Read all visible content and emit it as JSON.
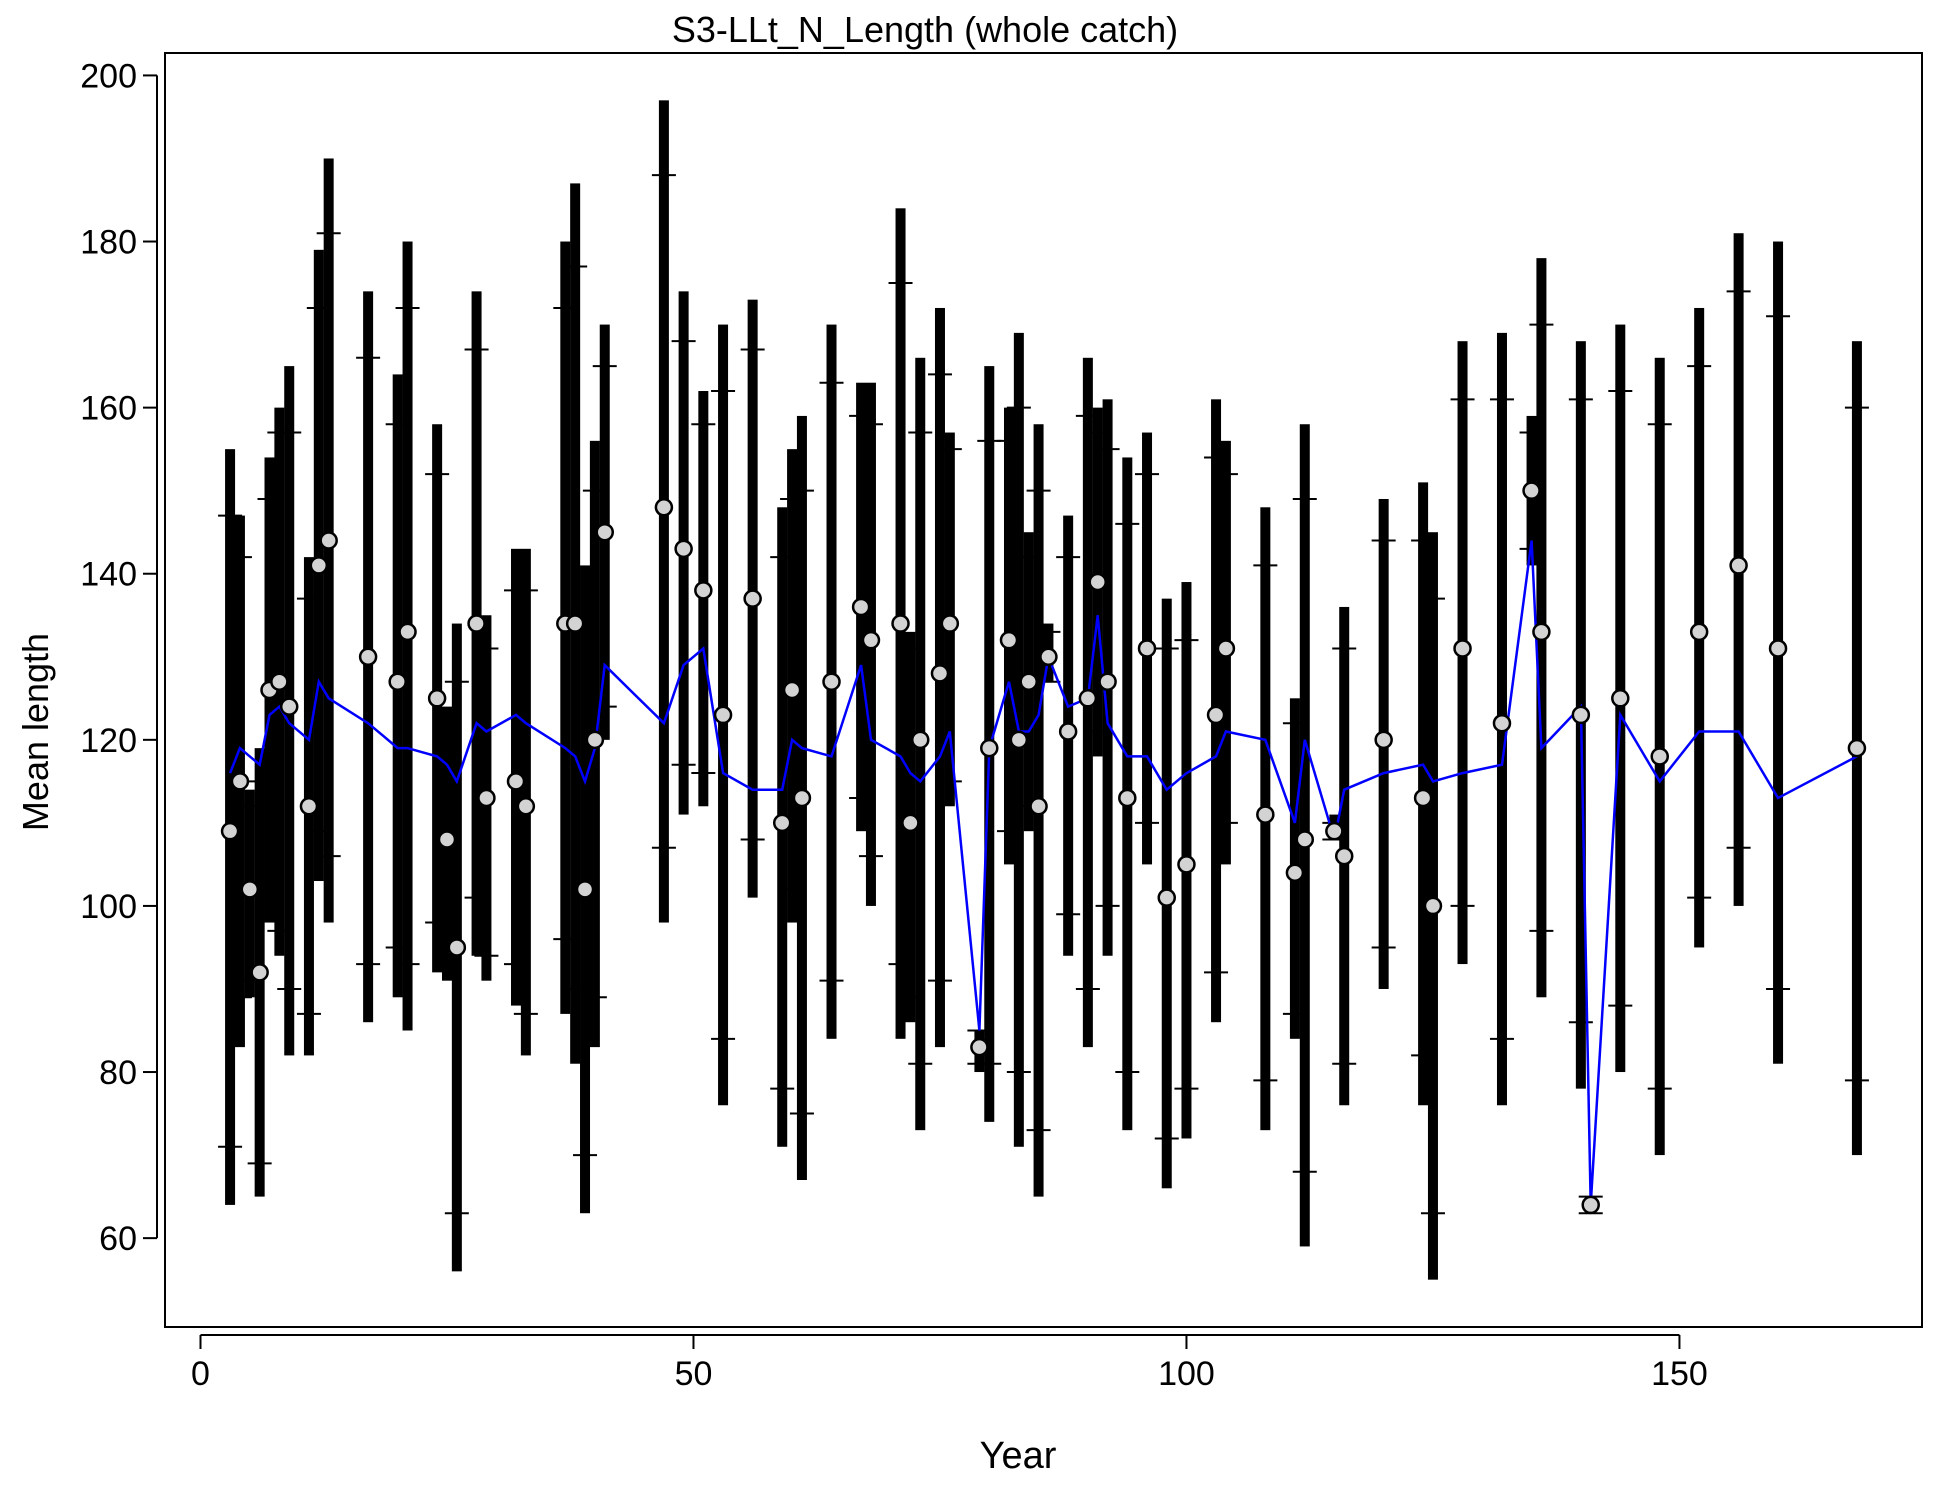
{
  "chart_data": {
    "type": "errorbar",
    "title": "S3-LLt_N_Length (whole catch)",
    "xlabel": "Year",
    "ylabel": "Mean length",
    "xlim": [
      -3.6,
      174.6
    ],
    "ylim": [
      49.3,
      202.7
    ],
    "xticks": [
      0,
      50,
      100,
      150
    ],
    "yticks": [
      60,
      80,
      100,
      120,
      140,
      160,
      180,
      200
    ],
    "point_color": "#d3d3d3",
    "bar_color": "#000000",
    "line_color": "#0000ff",
    "x": [
      3,
      4,
      5,
      6,
      7,
      8,
      9,
      11,
      12,
      13,
      17,
      20,
      21,
      24,
      25,
      26,
      28,
      29,
      32,
      33,
      37,
      38,
      39,
      40,
      41,
      47,
      49,
      51,
      53,
      56,
      59,
      60,
      61,
      64,
      67,
      68,
      71,
      72,
      73,
      75,
      76,
      79,
      80,
      82,
      83,
      84,
      85,
      86,
      88,
      90,
      91,
      92,
      94,
      96,
      98,
      100,
      103,
      104,
      108,
      111,
      112,
      115,
      116,
      120,
      124,
      125,
      128,
      132,
      135,
      136,
      140,
      141,
      144,
      148,
      152,
      156,
      160,
      168
    ],
    "values": [
      109,
      115,
      102,
      92,
      126,
      127,
      124,
      112,
      141,
      144,
      130,
      127,
      133,
      125,
      108,
      95,
      134,
      113,
      115,
      112,
      134,
      134,
      102,
      120,
      145,
      148,
      143,
      138,
      123,
      137,
      110,
      126,
      113,
      127,
      136,
      132,
      134,
      110,
      120,
      128,
      134,
      83,
      119,
      132,
      120,
      127,
      112,
      130,
      121,
      125,
      139,
      127,
      113,
      131,
      101,
      105,
      123,
      131,
      111,
      104,
      108,
      109,
      106,
      120,
      113,
      100,
      131,
      122,
      150,
      133,
      123,
      64,
      125,
      118,
      133,
      141,
      131,
      119
    ],
    "lower": [
      64,
      83,
      89,
      65,
      98,
      94,
      82,
      82,
      103,
      98,
      86,
      89,
      85,
      92,
      91,
      56,
      94,
      91,
      88,
      82,
      87,
      81,
      63,
      83,
      120,
      98,
      111,
      112,
      76,
      101,
      71,
      98,
      67,
      84,
      109,
      100,
      84,
      86,
      73,
      83,
      112,
      80,
      74,
      105,
      71,
      109,
      65,
      127,
      94,
      83,
      118,
      94,
      73,
      105,
      66,
      72,
      86,
      105,
      73,
      84,
      59,
      108,
      76,
      90,
      76,
      55,
      93,
      76,
      141,
      89,
      78,
      63,
      80,
      70,
      95,
      100,
      81,
      70
    ],
    "upper": [
      155,
      147,
      114,
      119,
      154,
      160,
      165,
      142,
      179,
      190,
      174,
      164,
      180,
      158,
      124,
      134,
      174,
      135,
      143,
      143,
      180,
      187,
      141,
      156,
      170,
      197,
      174,
      162,
      170,
      173,
      148,
      155,
      159,
      170,
      163,
      163,
      184,
      133,
      166,
      172,
      157,
      85,
      165,
      160,
      169,
      145,
      158,
      134,
      147,
      166,
      160,
      161,
      154,
      157,
      137,
      139,
      161,
      156,
      148,
      125,
      158,
      111,
      136,
      149,
      151,
      145,
      168,
      169,
      159,
      178,
      168,
      65,
      170,
      166,
      172,
      181,
      180,
      168
    ],
    "inner_lower": [
      71,
      89,
      91,
      69,
      101,
      97,
      90,
      87,
      109,
      106,
      93,
      95,
      93,
      98,
      94,
      63,
      101,
      94,
      93,
      87,
      96,
      90,
      70,
      89,
      124,
      107,
      117,
      116,
      84,
      108,
      78,
      102,
      75,
      91,
      113,
      106,
      93,
      89,
      81,
      91,
      115,
      81,
      81,
      109,
      80,
      112,
      73,
      127,
      99,
      90,
      121,
      100,
      80,
      110,
      72,
      78,
      92,
      110,
      79,
      87,
      68,
      108,
      81,
      95,
      82,
      63,
      100,
      84,
      143,
      97,
      86,
      63,
      88,
      78,
      101,
      107,
      90,
      79
    ],
    "inner_upper": [
      147,
      142,
      112,
      115,
      149,
      157,
      157,
      137,
      172,
      181,
      166,
      158,
      172,
      152,
      122,
      127,
      167,
      131,
      138,
      138,
      172,
      177,
      134,
      150,
      165,
      188,
      168,
      158,
      162,
      167,
      142,
      149,
      150,
      163,
      159,
      158,
      175,
      131,
      157,
      164,
      155,
      85,
      156,
      156,
      160,
      142,
      150,
      133,
      142,
      159,
      157,
      155,
      146,
      152,
      131,
      132,
      154,
      152,
      141,
      122,
      149,
      110,
      131,
      144,
      144,
      137,
      161,
      161,
      157,
      170,
      161,
      65,
      162,
      158,
      165,
      174,
      171,
      160
    ],
    "expected": [
      116,
      119,
      118,
      117,
      123,
      124,
      122,
      120,
      127,
      125,
      122,
      119,
      119,
      118,
      117,
      115,
      122,
      121,
      123,
      122,
      119,
      118,
      115,
      119,
      129,
      122,
      129,
      131,
      116,
      114,
      114,
      120,
      119,
      118,
      129,
      120,
      118,
      116,
      115,
      118,
      121,
      85,
      119,
      127,
      121,
      121,
      123,
      130,
      124,
      125,
      135,
      122,
      118,
      118,
      114,
      116,
      118,
      121,
      120,
      110,
      120,
      108,
      114,
      116,
      117,
      115,
      116,
      117,
      144,
      119,
      124,
      64,
      123,
      115,
      121,
      121,
      113,
      118
    ]
  }
}
